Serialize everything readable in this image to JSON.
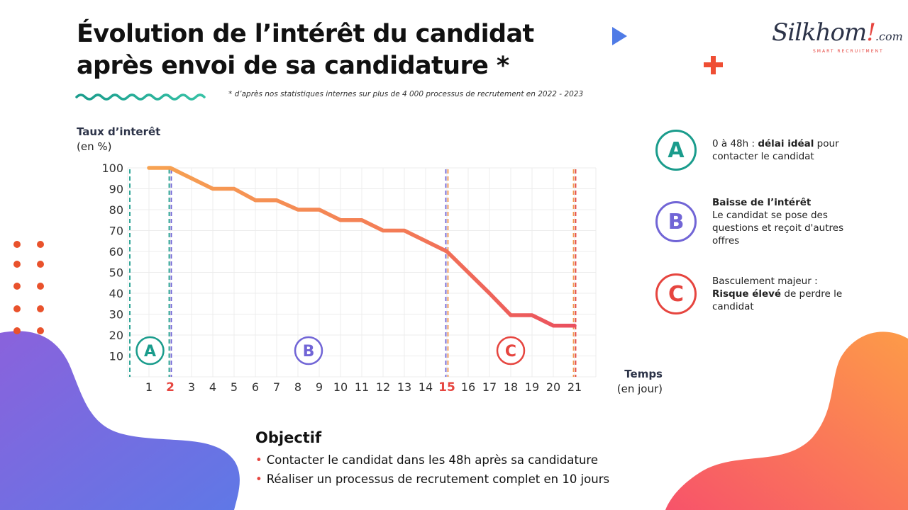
{
  "title": {
    "line1": "Évolution de l’intérêt du candidat",
    "line2": "après envoi de sa candidature *"
  },
  "footnote": "* d’après nos statistiques internes sur plus de 4 000 processus de recrutement en 2022 - 2023",
  "logo": {
    "main": "Silkhom",
    "excl": "!",
    "tld": ".com",
    "tagline": "SMART RECRUITMENT"
  },
  "colors": {
    "teal": "#1a9c8c",
    "purple": "#7165d6",
    "red": "#e6453f",
    "orange_line": "#f39a52",
    "red_line": "#ec5b5b",
    "blob_purple": "#6d6fe0",
    "blob_orange": "#fb8a4e"
  },
  "chart_data": {
    "type": "line",
    "title": "",
    "ylabel": "Taux d’interêt",
    "ylabel_unit": "(en %)",
    "xlabel": "Temps",
    "xlabel_unit": "(en jour)",
    "x": [
      1,
      2,
      3,
      4,
      5,
      6,
      7,
      8,
      9,
      10,
      11,
      12,
      13,
      14,
      15,
      16,
      17,
      18,
      19,
      20,
      21
    ],
    "y_ticks": [
      10,
      20,
      30,
      40,
      50,
      60,
      70,
      80,
      90,
      100
    ],
    "x_highlight": [
      2,
      15
    ],
    "xlim": [
      0,
      22
    ],
    "ylim": [
      0,
      100
    ],
    "grid": true,
    "series": [
      {
        "values": [
          {
            "x": 1,
            "y": 100
          },
          {
            "x": 2,
            "y": 100
          },
          {
            "x": 3,
            "y": 95
          },
          {
            "x": 4,
            "y": 90
          },
          {
            "x": 5,
            "y": 90
          },
          {
            "x": 6,
            "y": 84.5
          },
          {
            "x": 7,
            "y": 84.5
          },
          {
            "x": 8,
            "y": 80
          },
          {
            "x": 9,
            "y": 80
          },
          {
            "x": 10,
            "y": 75
          },
          {
            "x": 11,
            "y": 75
          },
          {
            "x": 12,
            "y": 70
          },
          {
            "x": 13,
            "y": 70
          },
          {
            "x": 14,
            "y": 65
          },
          {
            "x": 15,
            "y": 60
          },
          {
            "x": 16,
            "y": 50
          },
          {
            "x": 17,
            "y": 40
          },
          {
            "x": 18,
            "y": 29.5
          },
          {
            "x": 19,
            "y": 29.5
          },
          {
            "x": 20,
            "y": 24.5
          },
          {
            "x": 21,
            "y": 24.5
          }
        ]
      }
    ],
    "phases": [
      {
        "label": "A",
        "start": 0.1,
        "end": 2,
        "color": "#1a9c8c"
      },
      {
        "label": "B",
        "start": 2,
        "end": 15,
        "color": "#7165d6"
      },
      {
        "label": "C",
        "start": 15,
        "end": 21,
        "color": "#e6453f"
      }
    ]
  },
  "legend": [
    {
      "letter": "A",
      "color": "#1a9c8c",
      "line1_plain": "0 à 48h : ",
      "line1_bold": "délai idéal",
      "line1_after": " pour",
      "line2": "contacter le candidat"
    },
    {
      "letter": "B",
      "color": "#7165d6",
      "heading": "Baisse de l’intérêt",
      "body": "Le candidat se pose des questions et reçoit d'autres offres"
    },
    {
      "letter": "C",
      "color": "#e6453f",
      "line1": "Basculement majeur :",
      "bold": "Risque élevé",
      "rest": " de perdre le candidat"
    }
  ],
  "objective": {
    "title": "Objectif",
    "bullet": "•",
    "items": [
      "Contacter le candidat dans les 48h après sa candidature",
      "Réaliser un processus de recrutement complet en 10 jours"
    ]
  }
}
